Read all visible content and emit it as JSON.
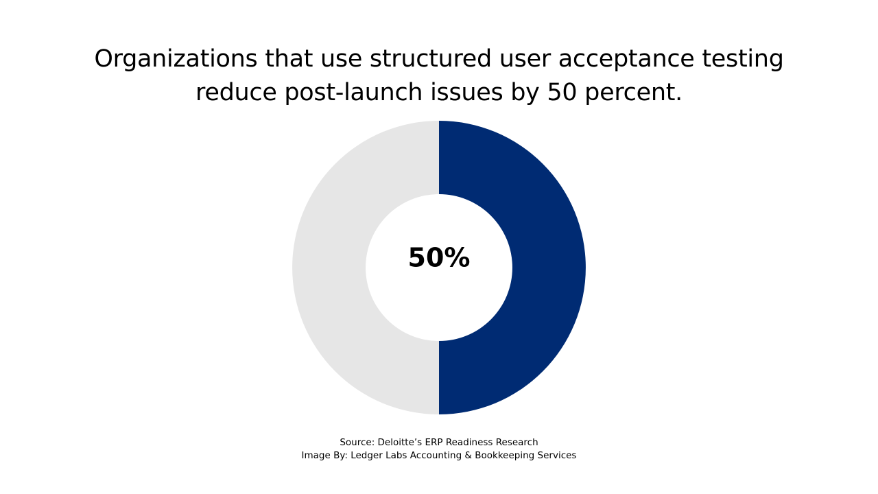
{
  "title": {
    "line1": "Organizations that use structured user acceptance testing",
    "line2": "reduce post-launch issues by 50 percent."
  },
  "chart_data": {
    "type": "pie",
    "style": "donut",
    "center_label": "50%",
    "slices": [
      {
        "value": 50,
        "color": "#002B73"
      },
      {
        "value": 50,
        "color": "#E6E6E6"
      }
    ],
    "start": "top",
    "direction": "clockwise",
    "legend": "none"
  },
  "footer": {
    "source": "Source: Deloitte’s ERP Readiness Research",
    "credit": "Image By: Ledger Labs Accounting & Bookkeeping Services"
  }
}
